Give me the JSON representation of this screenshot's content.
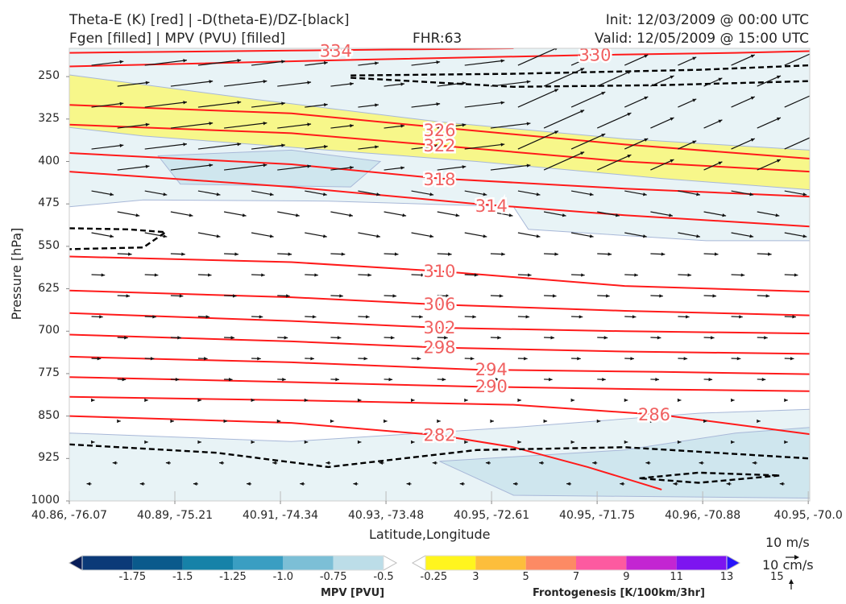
{
  "header": {
    "title_line1": "Theta-E (K) [red] | -D(theta-E)/DZ-[black]",
    "title_line2": "Fgen [filled] | MPV (PVU) [filled]",
    "fhr": "FHR:63",
    "init": "Init: 12/03/2009 @ 00:00 UTC",
    "valid": "Valid: 12/05/2009 @ 15:00 UTC"
  },
  "chart_data": {
    "type": "cross-section",
    "xlabel": "Latitude,Longitude",
    "ylabel": "Pressure [hPa]",
    "x_ticks": [
      "40.86, -76.07",
      "40.89, -75.21",
      "40.91, -74.34",
      "40.93, -73.48",
      "40.95, -72.61",
      "40.95, -71.75",
      "40.96, -70.88",
      "40.95, -70.0"
    ],
    "y_ticks": [
      250,
      325,
      400,
      475,
      550,
      625,
      700,
      775,
      850,
      925,
      1000
    ],
    "ylim": [
      1000,
      200
    ],
    "theta_e_contour_labels": [
      {
        "label": "334",
        "x_frac": 0.36,
        "pressure": 205
      },
      {
        "label": "330",
        "x_frac": 0.71,
        "pressure": 212
      },
      {
        "label": "326",
        "x_frac": 0.5,
        "pressure": 345
      },
      {
        "label": "322",
        "x_frac": 0.5,
        "pressure": 372
      },
      {
        "label": "318",
        "x_frac": 0.5,
        "pressure": 432
      },
      {
        "label": "314",
        "x_frac": 0.57,
        "pressure": 479
      },
      {
        "label": "310",
        "x_frac": 0.5,
        "pressure": 594
      },
      {
        "label": "306",
        "x_frac": 0.5,
        "pressure": 653
      },
      {
        "label": "302",
        "x_frac": 0.5,
        "pressure": 694
      },
      {
        "label": "298",
        "x_frac": 0.5,
        "pressure": 729
      },
      {
        "label": "294",
        "x_frac": 0.57,
        "pressure": 768
      },
      {
        "label": "290",
        "x_frac": 0.57,
        "pressure": 798
      },
      {
        "label": "286",
        "x_frac": 0.79,
        "pressure": 848
      },
      {
        "label": "282",
        "x_frac": 0.5,
        "pressure": 884
      }
    ],
    "mpv_colorbar": {
      "title": "MPV [PVU]",
      "ticks": [
        "-1.75",
        "-1.5",
        "-1.25",
        "-1.0",
        "-0.75",
        "-0.5",
        "-0.25"
      ],
      "colors": [
        "#081d58",
        "#0b3a78",
        "#0a5a8c",
        "#1682a8",
        "#3a9ec2",
        "#7cbfd6",
        "#bcdde8",
        "#ffffff"
      ]
    },
    "fgen_colorbar": {
      "title": "Frontogenesis [K/100km/3hr]",
      "ticks": [
        "3",
        "5",
        "7",
        "9",
        "11",
        "13",
        "15"
      ],
      "colors": [
        "#ffffff",
        "#fff51e",
        "#fdbe3c",
        "#fd8a64",
        "#fd5aa0",
        "#c325d2",
        "#7d14f0",
        "#2814fa"
      ]
    },
    "wind_reference": {
      "label_horizontal": "10 m/s",
      "label_vertical": "10 cm/s"
    }
  },
  "colors": {
    "theta_e": "#ff1a1a",
    "theta_e_label": "#f06060",
    "dthetae_dz": "#000000",
    "mpv_fill_light": "#e8f3f6",
    "mpv_fill_mid": "#cfe6ee",
    "fgen_fill": "#f7f78a"
  }
}
